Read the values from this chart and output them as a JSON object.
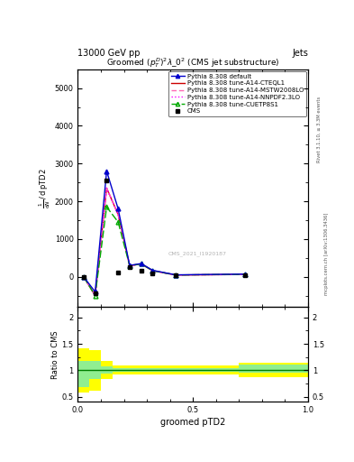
{
  "header_left": "13000 GeV pp",
  "header_right": "Jets",
  "title": "Groomed $(p_T^D)^2\\lambda\\_0^2$ (CMS jet substructure)",
  "xlabel": "groomed pTD2",
  "ylabel_ratio": "Ratio to CMS",
  "watermark": "CMS_2021_I1920187",
  "right_label_top": "Rivet 3.1.10, ≥ 3.3M events",
  "right_label_bottom": "mcplots.cern.ch [arXiv:1306.3436]",
  "x_pts": [
    0.025,
    0.075,
    0.125,
    0.175,
    0.225,
    0.275,
    0.325,
    0.425,
    0.725
  ],
  "x_bins": [
    0.0,
    0.05,
    0.1,
    0.15,
    0.2,
    0.25,
    0.3,
    0.35,
    0.4,
    0.45,
    0.5,
    0.55,
    0.6,
    0.65,
    0.7,
    0.75,
    0.8,
    0.85,
    0.9,
    0.95,
    1.0
  ],
  "cms_y": [
    0,
    -450,
    2550,
    100,
    250,
    150,
    80,
    30,
    50
  ],
  "default_y": [
    0,
    -400,
    2800,
    1800,
    300,
    350,
    170,
    50,
    70
  ],
  "cteql1_y": [
    0,
    -500,
    2350,
    1650,
    290,
    340,
    160,
    45,
    60
  ],
  "mstw_y": [
    0,
    -500,
    2350,
    1650,
    290,
    340,
    160,
    45,
    60
  ],
  "nnpdf_y": [
    0,
    -500,
    2350,
    1650,
    290,
    340,
    160,
    45,
    60
  ],
  "cuetp_y": [
    0,
    -500,
    1850,
    1450,
    290,
    340,
    160,
    45,
    65
  ],
  "colors": {
    "cms": "#000000",
    "default": "#0000cc",
    "cteql1": "#cc0000",
    "mstw": "#ff69b4",
    "nnpdf": "#ff00ff",
    "cuetp": "#00aa00"
  },
  "x_band_edges": [
    0.0,
    0.05,
    0.1,
    0.15,
    0.2,
    0.25,
    0.3,
    0.35,
    0.4,
    0.45,
    0.5,
    0.55,
    0.6,
    0.65,
    0.7,
    0.75,
    0.8,
    0.85,
    0.9,
    0.95,
    1.0
  ],
  "ratio_yellow_lo": [
    0.58,
    0.62,
    0.83,
    0.92,
    0.92,
    0.92,
    0.92,
    0.92,
    0.92,
    0.92,
    0.92,
    0.92,
    0.92,
    0.92,
    0.87,
    0.87,
    0.87,
    0.87,
    0.87,
    0.87
  ],
  "ratio_yellow_hi": [
    1.42,
    1.38,
    1.17,
    1.09,
    1.09,
    1.09,
    1.09,
    1.09,
    1.09,
    1.09,
    1.09,
    1.09,
    1.09,
    1.09,
    1.14,
    1.14,
    1.14,
    1.14,
    1.14,
    1.14
  ],
  "ratio_green_lo": [
    0.68,
    0.83,
    0.94,
    0.97,
    0.97,
    0.97,
    0.97,
    0.97,
    0.97,
    0.97,
    0.97,
    0.97,
    0.97,
    0.97,
    0.96,
    0.96,
    0.96,
    0.96,
    0.96,
    0.96
  ],
  "ratio_green_hi": [
    1.18,
    1.17,
    1.08,
    1.04,
    1.04,
    1.04,
    1.04,
    1.04,
    1.04,
    1.04,
    1.04,
    1.04,
    1.04,
    1.04,
    1.11,
    1.11,
    1.11,
    1.11,
    1.11,
    1.11
  ],
  "ylim_main": [
    -800,
    5500
  ],
  "ylim_ratio": [
    0.4,
    2.2
  ],
  "yticks_main": [
    0,
    1000,
    2000,
    3000,
    4000,
    5000
  ],
  "ytick_labels_main": [
    "0",
    "1000",
    "2000",
    "3000",
    "4000",
    "5000"
  ],
  "yticks_ratio": [
    0.5,
    1.0,
    1.5,
    2.0
  ],
  "xlim": [
    0.0,
    1.0
  ]
}
